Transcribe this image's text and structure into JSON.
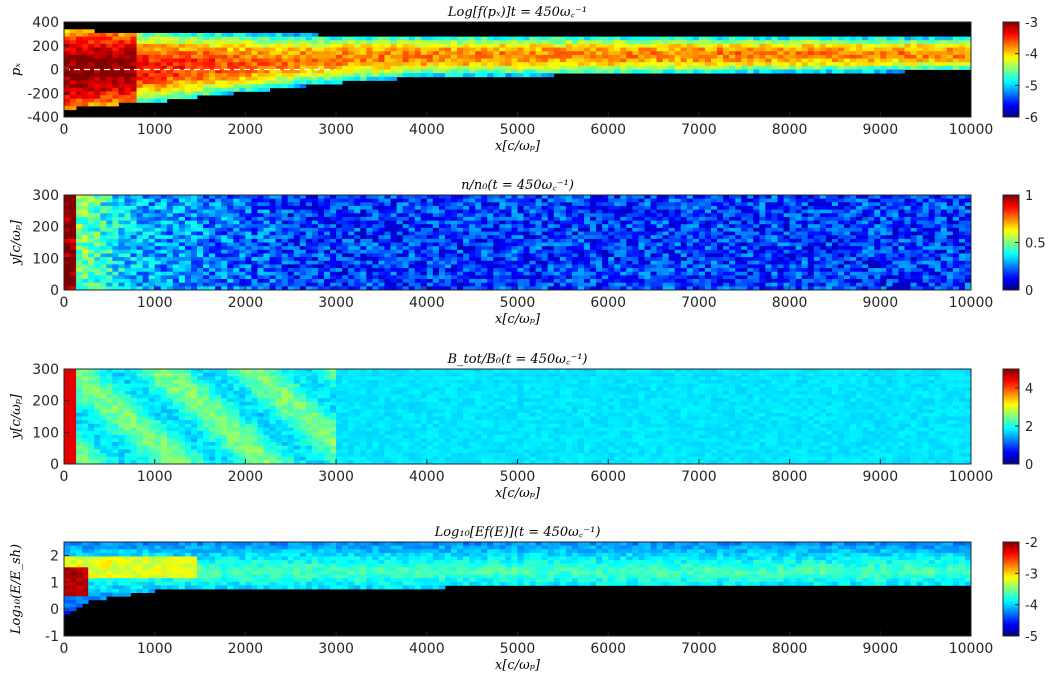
{
  "figure": {
    "panels": [
      {
        "id": "px",
        "title": "Log[f(pₓ)]t = 450ω꜀⁻¹",
        "xlabel": "x[c/ωₚ]",
        "ylabel": "pₓ",
        "colorbar_ticks": [
          "-3",
          "-4",
          "-5",
          "-6"
        ],
        "colormap": "jet",
        "background_color": "#000000"
      },
      {
        "id": "density",
        "title": "n/n₀(t = 450ω꜀⁻¹)",
        "xlabel": "x[c/ωₚ]",
        "ylabel": "y[c/ωₚ]",
        "colorbar_ticks": [
          "1",
          "0.5",
          "0"
        ],
        "colormap": "jet",
        "background_color": "#00007a"
      },
      {
        "id": "bfield",
        "title": "B_tot/B₀(t = 450ω꜀⁻¹)",
        "xlabel": "x[c/ωₚ]",
        "ylabel": "y[c/ωₚ]",
        "colorbar_ticks": [
          "4",
          "2",
          "0"
        ],
        "colormap": "jet",
        "background_color": "#1e8cff"
      },
      {
        "id": "energy",
        "title": "Log₁₀[Ef(E)](t = 450ω꜀⁻¹)",
        "xlabel": "x[c/ωₚ]",
        "ylabel": "Log₁₀(E/E_sh)",
        "colorbar_ticks": [
          "-2",
          "-3",
          "-4",
          "-5"
        ],
        "colormap": "jet",
        "background_color": "#000000"
      }
    ]
  },
  "chart_data": [
    {
      "type": "heatmap",
      "title": "Log[f(p_x)] t = 450ω_c^-1",
      "xlabel": "x[c/ω_p]",
      "ylabel": "p_x",
      "xlim": [
        0,
        10000
      ],
      "ylim": [
        -400,
        400
      ],
      "xticks": [
        0,
        1000,
        2000,
        3000,
        4000,
        5000,
        6000,
        7000,
        8000,
        9000,
        10000
      ],
      "yticks": [
        -400,
        -200,
        0,
        200,
        400
      ],
      "colorbar": {
        "min": -6,
        "max": -3,
        "ticks": [
          -3,
          -4,
          -5,
          -6
        ]
      },
      "colormap": "jet",
      "upper_edge_px": {
        "x": [
          0,
          1000,
          3000,
          6000,
          10000
        ],
        "values": [
          330,
          310,
          290,
          280,
          270
        ]
      },
      "lower_edge_px": {
        "x": [
          0,
          1000,
          2000,
          3000,
          4000,
          6000,
          8000,
          10000
        ],
        "values": [
          -330,
          -270,
          -190,
          -110,
          -60,
          -40,
          -25,
          -10
        ]
      },
      "dashed_reference_line": {
        "y": 0,
        "color": "#ffffff"
      }
    },
    {
      "type": "heatmap",
      "title": "n/n_0 (t = 450ω_c^-1)",
      "xlabel": "x[c/ω_p]",
      "ylabel": "y[c/ω_p]",
      "xlim": [
        0,
        10000
      ],
      "ylim": [
        0,
        300
      ],
      "xticks": [
        0,
        1000,
        2000,
        3000,
        4000,
        5000,
        6000,
        7000,
        8000,
        9000,
        10000
      ],
      "yticks": [
        0,
        100,
        200,
        300
      ],
      "colorbar": {
        "min": 0,
        "max": 1,
        "ticks": [
          1,
          0.5,
          0
        ]
      },
      "colormap": "jet"
    },
    {
      "type": "heatmap",
      "title": "B_tot/B_0 (t = 450ω_c^-1)",
      "xlabel": "x[c/ω_p]",
      "ylabel": "y[c/ω_p]",
      "xlim": [
        0,
        10000
      ],
      "ylim": [
        0,
        300
      ],
      "xticks": [
        0,
        1000,
        2000,
        3000,
        4000,
        5000,
        6000,
        7000,
        8000,
        9000,
        10000
      ],
      "yticks": [
        0,
        100,
        200,
        300
      ],
      "colorbar": {
        "min": 0,
        "max": 5,
        "ticks": [
          4,
          2,
          0
        ]
      },
      "colormap": "jet"
    },
    {
      "type": "heatmap",
      "title": "Log_10[Ef(E)] (t = 450ω_c^-1)",
      "xlabel": "x[c/ω_p]",
      "ylabel": "Log_10(E/E_sh)",
      "xlim": [
        0,
        10000
      ],
      "ylim": [
        -1,
        2.5
      ],
      "xticks": [
        0,
        1000,
        2000,
        3000,
        4000,
        5000,
        6000,
        7000,
        8000,
        9000,
        10000
      ],
      "yticks": [
        -1,
        0,
        1,
        2
      ],
      "colorbar": {
        "min": -5,
        "max": -2,
        "ticks": [
          -2,
          -3,
          -4,
          -5
        ]
      },
      "colormap": "jet",
      "lower_edge_log_e": {
        "x": [
          0,
          300,
          1000,
          3000,
          10000
        ],
        "values": [
          -0.3,
          0.3,
          0.7,
          0.8,
          0.9
        ]
      }
    }
  ]
}
